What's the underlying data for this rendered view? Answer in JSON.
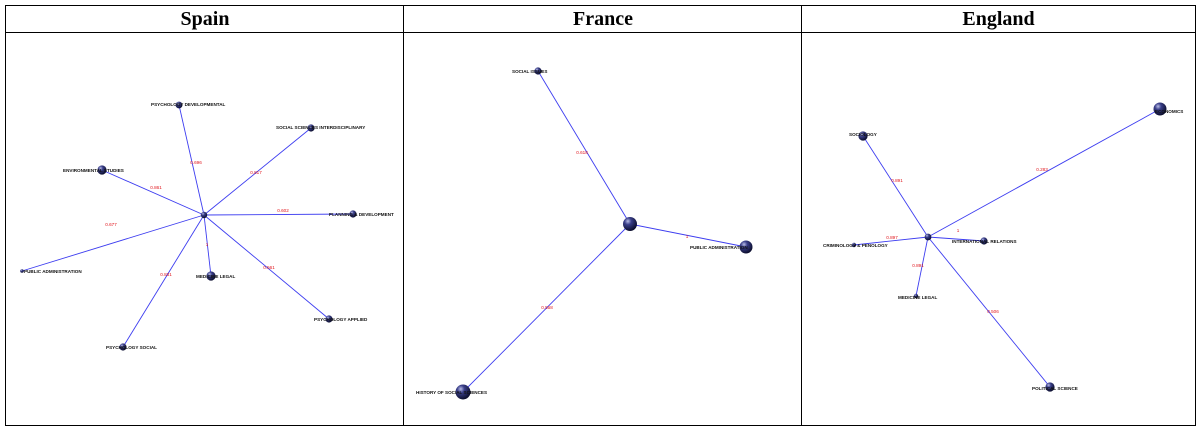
{
  "panels": [
    {
      "title": "Spain",
      "hub": {
        "label": "",
        "radius": 3.2
      },
      "nodes": [
        {
          "label": "PSYCHOLOGY DEVELOPMENTAL",
          "weight": "0.696",
          "radius": 3.4
        },
        {
          "label": "SOCIAL SCIENCES INTERDISCIPLINARY",
          "weight": "0.817",
          "radius": 3.6
        },
        {
          "label": "ENVIRONMENTAL STUDIES",
          "weight": "0.861",
          "radius": 4.6
        },
        {
          "label": "PLANNING & DEVELOPMENT",
          "weight": "0.602",
          "radius": 3.6
        },
        {
          "label": "PUBLIC ADMINISTRATION",
          "weight": "0.677",
          "radius": 1.8
        },
        {
          "label": "MEDICINE LEGAL",
          "weight": "1",
          "radius": 4.6
        },
        {
          "label": "PSYCHOLOGY APPLIED",
          "weight": "0.561",
          "radius": 3.6
        },
        {
          "label": "PSYCHOLOGY SOCIAL",
          "weight": "0.831",
          "radius": 3.6
        }
      ]
    },
    {
      "title": "France",
      "hub": {
        "label": "",
        "radius": 7
      },
      "nodes": [
        {
          "label": "SOCIAL ISSUES",
          "weight": "0.618",
          "radius": 3.6
        },
        {
          "label": "PUBLIC ADMINISTRATION",
          "weight": "1",
          "radius": 6.5
        },
        {
          "label": "HISTORY OF SOCIAL SCIENCES",
          "weight": "0.558",
          "radius": 7.5
        }
      ]
    },
    {
      "title": "England",
      "hub": {
        "label": "",
        "radius": 3.4
      },
      "nodes": [
        {
          "label": "SOCIOLOGY",
          "weight": "0.891",
          "radius": 4.6
        },
        {
          "label": "ECONOMICS",
          "weight": "0.283",
          "radius": 6.5
        },
        {
          "label": "CRIMINOLOGY & PENOLOGY",
          "weight": "0.897",
          "radius": 2.2
        },
        {
          "label": "INTERNATIONAL RELATIONS",
          "weight": "1",
          "radius": 3.6
        },
        {
          "label": "MEDICINE LEGAL",
          "weight": "0.891",
          "radius": 2.2
        },
        {
          "label": "POLITICAL SCIENCE",
          "weight": "0.506",
          "radius": 4.6
        }
      ]
    }
  ]
}
